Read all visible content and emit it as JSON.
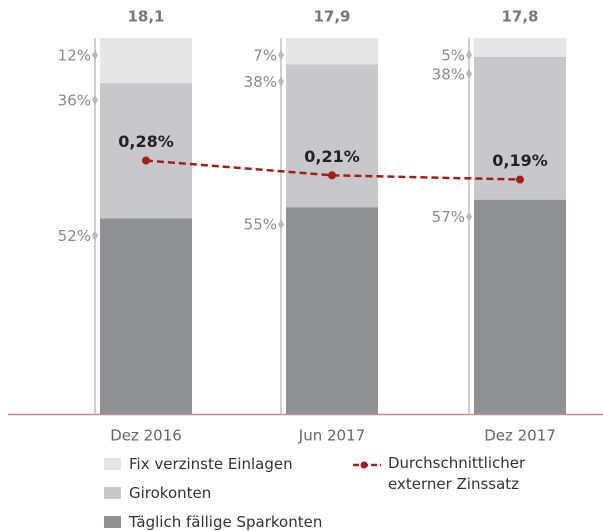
{
  "chart_data": {
    "type": "bar",
    "categories": [
      "Dez 2016",
      "Jun 2017",
      "Dez 2017"
    ],
    "ylim": [
      0,
      100
    ],
    "y2lim": [
      -0.92,
      0.86
    ],
    "totals": {
      "values": [
        18.1,
        17.9,
        17.8
      ],
      "value_labels": [
        "18,1",
        "17,9",
        "17,8"
      ]
    },
    "series": [
      {
        "name": "Fix verzinste Einlagen",
        "color": "#e5e5e6",
        "values": [
          12,
          7,
          5
        ],
        "value_labels": [
          "12%",
          "7%",
          "5%"
        ]
      },
      {
        "name": "Girokonten",
        "color": "#c8c8ca",
        "values": [
          36,
          38,
          38
        ],
        "value_labels": [
          "36%",
          "38%",
          "38%"
        ]
      },
      {
        "name": "Täglich fällige Sparkonten",
        "color": "#8f9194",
        "values": [
          52,
          55,
          57
        ],
        "value_labels": [
          "52%",
          "55%",
          "57%"
        ]
      },
      {
        "name": "Durchschnittlicher externer Zinssatz",
        "type": "line",
        "axis": "y2",
        "color": "#a31d1d",
        "values": [
          0.28,
          0.21,
          0.19
        ],
        "value_labels": [
          "0,28%",
          "0,21%",
          "0,19%"
        ]
      }
    ]
  }
}
